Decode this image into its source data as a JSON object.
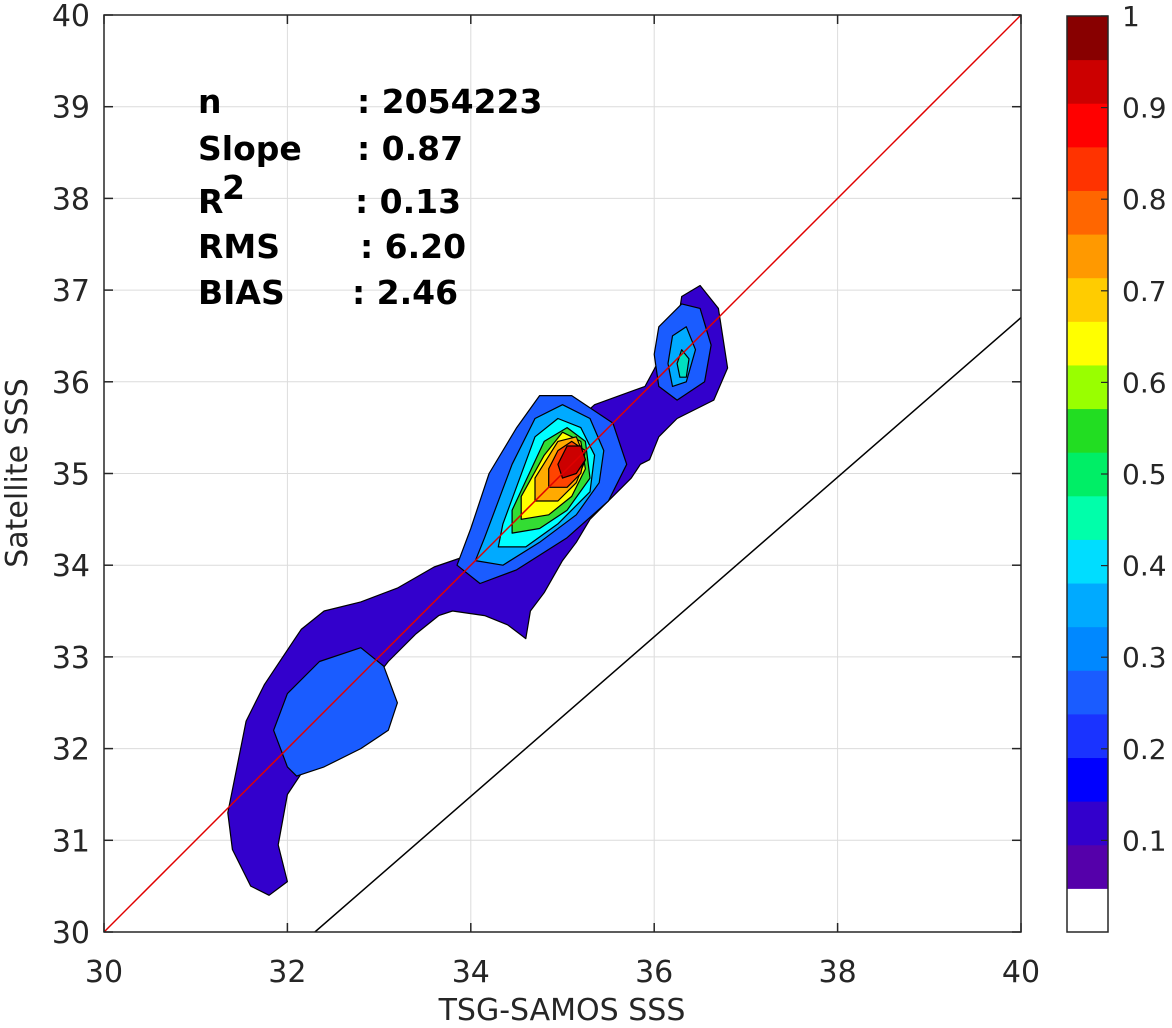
{
  "chart_data": {
    "type": "contour",
    "title": "",
    "xlabel": "TSG-SAMOS SSS",
    "ylabel": "Satellite SSS",
    "xlim": [
      30,
      40
    ],
    "ylim": [
      30,
      40
    ],
    "xticks": [
      30,
      32,
      34,
      36,
      38,
      40
    ],
    "yticks": [
      30,
      31,
      32,
      33,
      34,
      35,
      36,
      37,
      38,
      39,
      40
    ],
    "grid": true,
    "stats": [
      {
        "label": "n",
        "value": ": 2054223"
      },
      {
        "label": "Slope",
        "value": ": 0.87"
      },
      {
        "label": "R",
        "sup": "2",
        "value": ": 0.13"
      },
      {
        "label": "RMS",
        "value": ": 6.20"
      },
      {
        "label": "BIAS",
        "value": ": 2.46"
      }
    ],
    "lines": [
      {
        "role": "one-to-one",
        "color": "#e00000",
        "x": [
          30,
          40
        ],
        "y": [
          30,
          40
        ]
      },
      {
        "role": "fit",
        "color": "#000000",
        "x": [
          32.3,
          40
        ],
        "y": [
          30,
          36.7
        ]
      }
    ],
    "contours": [
      {
        "level": 0.1,
        "color": "#3300cc",
        "path": [
          [
            31.8,
            30.4
          ],
          [
            31.6,
            30.5
          ],
          [
            31.4,
            30.9
          ],
          [
            31.35,
            31.3
          ],
          [
            31.45,
            31.8
          ],
          [
            31.55,
            32.3
          ],
          [
            31.75,
            32.7
          ],
          [
            31.95,
            33.0
          ],
          [
            32.15,
            33.3
          ],
          [
            32.4,
            33.5
          ],
          [
            32.8,
            33.6
          ],
          [
            33.2,
            33.75
          ],
          [
            33.6,
            33.98
          ],
          [
            33.95,
            34.1
          ],
          [
            34.1,
            34.25
          ],
          [
            34.35,
            34.4
          ],
          [
            34.55,
            34.9
          ],
          [
            34.9,
            35.35
          ],
          [
            35.35,
            35.75
          ],
          [
            35.9,
            35.95
          ],
          [
            36.25,
            36.6
          ],
          [
            36.3,
            36.93
          ],
          [
            36.5,
            37.05
          ],
          [
            36.7,
            36.8
          ],
          [
            36.8,
            36.15
          ],
          [
            36.65,
            35.8
          ],
          [
            36.25,
            35.6
          ],
          [
            36.05,
            35.4
          ],
          [
            35.95,
            35.15
          ],
          [
            35.85,
            35.1
          ],
          [
            35.75,
            34.95
          ],
          [
            35.55,
            34.75
          ],
          [
            35.3,
            34.5
          ],
          [
            35.15,
            34.25
          ],
          [
            35.0,
            34.05
          ],
          [
            34.8,
            33.7
          ],
          [
            34.65,
            33.5
          ],
          [
            34.6,
            33.2
          ],
          [
            34.4,
            33.35
          ],
          [
            34.15,
            33.45
          ],
          [
            33.8,
            33.5
          ],
          [
            33.65,
            33.45
          ],
          [
            33.4,
            33.25
          ],
          [
            33.1,
            32.95
          ],
          [
            32.75,
            32.5
          ],
          [
            32.45,
            32.1
          ],
          [
            32.2,
            31.8
          ],
          [
            32.0,
            31.5
          ],
          [
            31.9,
            30.95
          ],
          [
            32.0,
            30.55
          ],
          [
            31.8,
            30.4
          ]
        ]
      },
      {
        "level": 0.15,
        "color": "#1a5cff",
        "path": [
          [
            32.0,
            31.8
          ],
          [
            31.85,
            32.2
          ],
          [
            32.0,
            32.6
          ],
          [
            32.35,
            32.95
          ],
          [
            32.8,
            33.1
          ],
          [
            33.05,
            32.9
          ],
          [
            33.2,
            32.5
          ],
          [
            33.1,
            32.2
          ],
          [
            32.8,
            32.0
          ],
          [
            32.4,
            31.8
          ],
          [
            32.1,
            31.7
          ],
          [
            32.0,
            31.8
          ]
        ]
      },
      {
        "level": 0.15,
        "color": "#1a5cff",
        "path": [
          [
            34.0,
            34.4
          ],
          [
            33.85,
            34.0
          ],
          [
            34.1,
            33.8
          ],
          [
            34.5,
            33.95
          ],
          [
            35.05,
            34.3
          ],
          [
            35.5,
            34.7
          ],
          [
            35.7,
            35.1
          ],
          [
            35.55,
            35.55
          ],
          [
            35.1,
            35.85
          ],
          [
            34.75,
            35.85
          ],
          [
            34.5,
            35.5
          ],
          [
            34.2,
            35.0
          ],
          [
            34.0,
            34.4
          ]
        ]
      },
      {
        "level": 0.15,
        "color": "#1a5cff",
        "path": [
          [
            36.0,
            36.3
          ],
          [
            36.05,
            36.6
          ],
          [
            36.3,
            36.85
          ],
          [
            36.5,
            36.8
          ],
          [
            36.62,
            36.4
          ],
          [
            36.55,
            36.0
          ],
          [
            36.25,
            35.8
          ],
          [
            36.05,
            35.95
          ],
          [
            36.0,
            36.3
          ]
        ]
      },
      {
        "level": 0.3,
        "color": "#00aaff",
        "path": [
          [
            34.15,
            34.3
          ],
          [
            34.05,
            34.05
          ],
          [
            34.35,
            34.0
          ],
          [
            34.75,
            34.25
          ],
          [
            35.15,
            34.55
          ],
          [
            35.4,
            34.9
          ],
          [
            35.45,
            35.25
          ],
          [
            35.3,
            35.6
          ],
          [
            35.0,
            35.75
          ],
          [
            34.7,
            35.6
          ],
          [
            34.45,
            35.1
          ],
          [
            34.15,
            34.3
          ]
        ]
      },
      {
        "level": 0.3,
        "color": "#00aaff",
        "path": [
          [
            36.15,
            36.2
          ],
          [
            36.2,
            36.5
          ],
          [
            36.35,
            36.6
          ],
          [
            36.45,
            36.35
          ],
          [
            36.35,
            36.0
          ],
          [
            36.2,
            35.95
          ],
          [
            36.15,
            36.2
          ]
        ]
      },
      {
        "level": 0.4,
        "color": "#00e0c0",
        "path": [
          [
            36.25,
            36.2
          ],
          [
            36.3,
            36.35
          ],
          [
            36.38,
            36.25
          ],
          [
            36.35,
            36.05
          ],
          [
            36.28,
            36.05
          ],
          [
            36.25,
            36.2
          ]
        ]
      },
      {
        "level": 0.35,
        "color": "#00ffff",
        "path": [
          [
            34.35,
            34.45
          ],
          [
            34.3,
            34.2
          ],
          [
            34.6,
            34.2
          ],
          [
            34.95,
            34.45
          ],
          [
            35.3,
            34.8
          ],
          [
            35.35,
            35.2
          ],
          [
            35.2,
            35.5
          ],
          [
            34.95,
            35.6
          ],
          [
            34.7,
            35.4
          ],
          [
            34.35,
            34.45
          ]
        ]
      },
      {
        "level": 0.5,
        "color": "#33dd33",
        "path": [
          [
            34.45,
            34.6
          ],
          [
            34.45,
            34.35
          ],
          [
            34.75,
            34.4
          ],
          [
            35.05,
            34.6
          ],
          [
            35.3,
            34.95
          ],
          [
            35.25,
            35.35
          ],
          [
            35.05,
            35.5
          ],
          [
            34.8,
            35.35
          ],
          [
            34.45,
            34.6
          ]
        ]
      },
      {
        "level": 0.6,
        "color": "#ffff00",
        "path": [
          [
            34.55,
            34.75
          ],
          [
            34.55,
            34.5
          ],
          [
            34.85,
            34.55
          ],
          [
            35.1,
            34.75
          ],
          [
            35.25,
            35.05
          ],
          [
            35.2,
            35.35
          ],
          [
            35.0,
            35.45
          ],
          [
            34.8,
            35.2
          ],
          [
            34.55,
            34.75
          ]
        ]
      },
      {
        "level": 0.7,
        "color": "#ffaa00",
        "path": [
          [
            34.7,
            34.95
          ],
          [
            34.7,
            34.7
          ],
          [
            34.95,
            34.7
          ],
          [
            35.15,
            34.9
          ],
          [
            35.25,
            35.15
          ],
          [
            35.15,
            35.4
          ],
          [
            34.95,
            35.35
          ],
          [
            34.7,
            34.95
          ]
        ]
      },
      {
        "level": 0.8,
        "color": "#ff4400",
        "path": [
          [
            34.85,
            35.05
          ],
          [
            34.85,
            34.85
          ],
          [
            35.05,
            34.85
          ],
          [
            35.2,
            35.0
          ],
          [
            35.25,
            35.25
          ],
          [
            35.1,
            35.35
          ],
          [
            34.95,
            35.25
          ],
          [
            34.85,
            35.05
          ]
        ]
      },
      {
        "level": 0.9,
        "color": "#cc0000",
        "path": [
          [
            34.95,
            35.1
          ],
          [
            35.0,
            34.95
          ],
          [
            35.15,
            35.0
          ],
          [
            35.25,
            35.15
          ],
          [
            35.2,
            35.3
          ],
          [
            35.05,
            35.3
          ],
          [
            34.95,
            35.1
          ]
        ]
      }
    ],
    "colorbar": {
      "range": [
        0,
        1
      ],
      "ticks": [
        "0.1",
        "0.2",
        "0.3",
        "0.4",
        "0.5",
        "0.6",
        "0.7",
        "0.8",
        "0.9",
        "1"
      ],
      "colors": [
        "#ffffff",
        "#5500aa",
        "#3300cc",
        "#0000ff",
        "#1a33ff",
        "#1a5cff",
        "#0088ff",
        "#00aaff",
        "#00ddff",
        "#00ffaa",
        "#00ee66",
        "#22dd22",
        "#99ff00",
        "#ffff00",
        "#ffcc00",
        "#ff9900",
        "#ff6600",
        "#ff3300",
        "#ff0000",
        "#cc0000",
        "#880000"
      ]
    }
  }
}
